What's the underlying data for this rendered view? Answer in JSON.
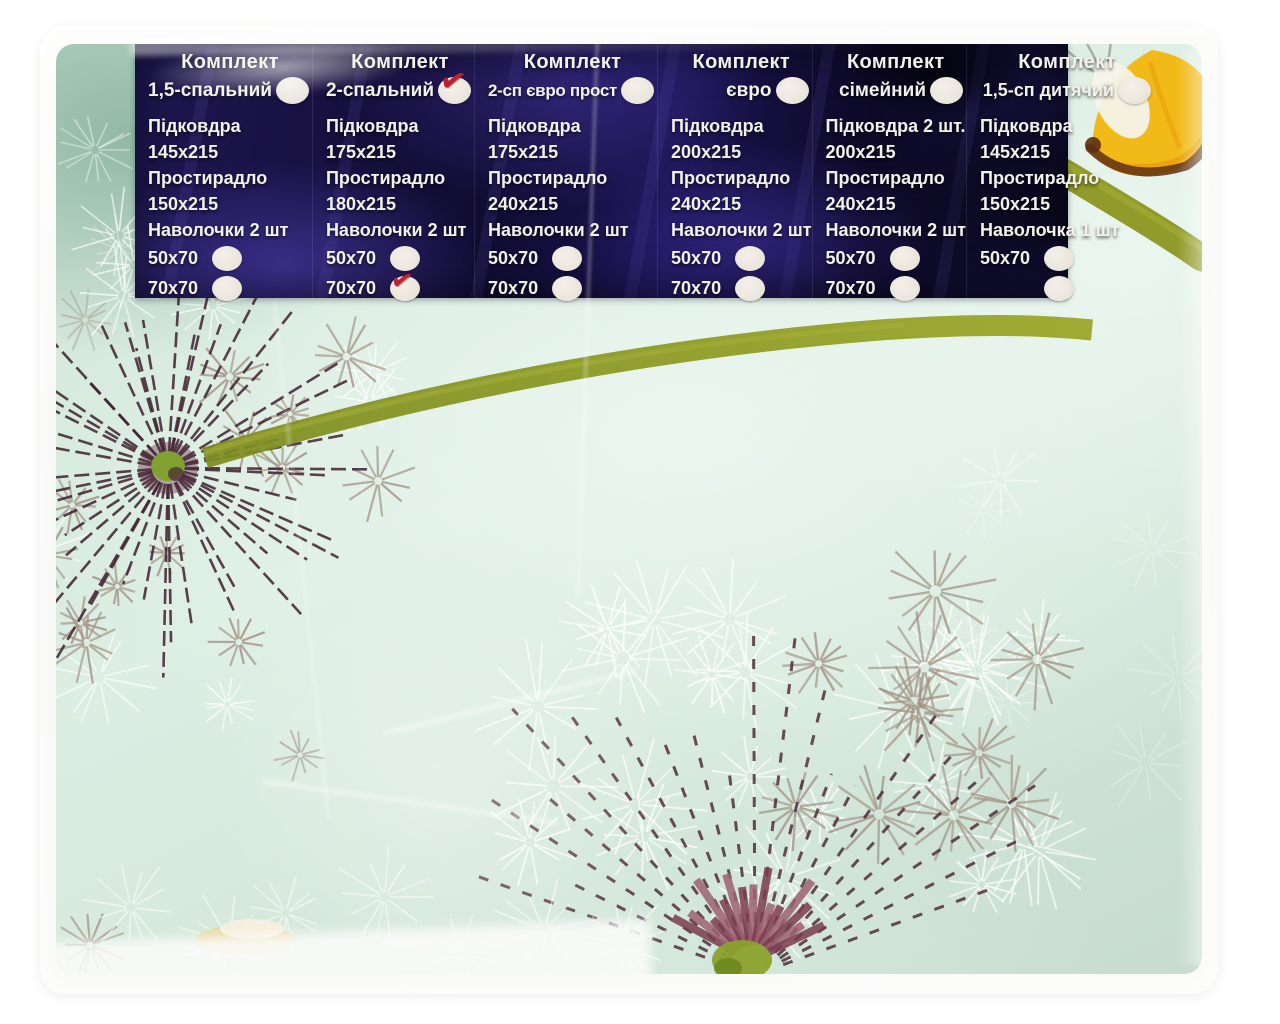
{
  "product_label": {
    "check_icon": "✔",
    "columns": [
      {
        "set_word": "Комплект",
        "size_name": "1,5-спальний",
        "header_checked": false,
        "items": [
          "Підковдра",
          "145х215",
          "Простирадло",
          "150х215",
          "Наволочки 2 шт"
        ],
        "options": [
          {
            "label": "50х70",
            "checked": false
          },
          {
            "label": "70х70",
            "checked": false
          }
        ]
      },
      {
        "set_word": "Комплект",
        "size_name": "2-спальний",
        "header_checked": true,
        "items": [
          "Підковдра",
          "175х215",
          "Простирадло",
          "180х215",
          "Наволочки 2 шт"
        ],
        "options": [
          {
            "label": "50х70",
            "checked": false
          },
          {
            "label": "70х70",
            "checked": true
          }
        ]
      },
      {
        "set_word": "Комплект",
        "size_name": "2-сп євро прост",
        "header_checked": false,
        "items": [
          "Підковдра",
          "175х215",
          "Простирадло",
          "240х215",
          "Наволочки 2 шт"
        ],
        "options": [
          {
            "label": "50х70",
            "checked": false
          },
          {
            "label": "70х70",
            "checked": false
          }
        ]
      },
      {
        "set_word": "Комплект",
        "size_name": "євро",
        "header_checked": false,
        "items": [
          "Підковдра",
          "200х215",
          "Простирадло",
          "240х215",
          "Наволочки 2 шт"
        ],
        "options": [
          {
            "label": "50х70",
            "checked": false
          },
          {
            "label": "70х70",
            "checked": false
          }
        ]
      },
      {
        "set_word": "Комплект",
        "size_name": "сімейний",
        "header_checked": false,
        "items": [
          "Підковдра 2 шт.",
          "200х215",
          "Простирадло",
          "240х215",
          "Наволочки 2 шт"
        ],
        "options": [
          {
            "label": "50х70",
            "checked": false
          },
          {
            "label": "70х70",
            "checked": false
          }
        ]
      },
      {
        "set_word": "Комплект",
        "size_name": "1,5-сп дитячий",
        "header_checked": false,
        "items": [
          "Підковдра",
          "145х215",
          "Простирадло",
          "150х215",
          "Наволочка 1 шт"
        ],
        "options": [
          {
            "label": "50х70",
            "checked": false
          },
          {
            "label": "",
            "checked": false
          }
        ]
      }
    ],
    "colors": {
      "banner_bg": "#140f38",
      "banner_accent": "#4a3aa6",
      "check_red": "#bc2130",
      "fabric_mint": "#d6e9de",
      "stem_olive": "#93a125",
      "butterfly_yellow": "#f2ba19",
      "seed_taupe": "#a29384",
      "stem_maroon": "#42222e"
    }
  }
}
